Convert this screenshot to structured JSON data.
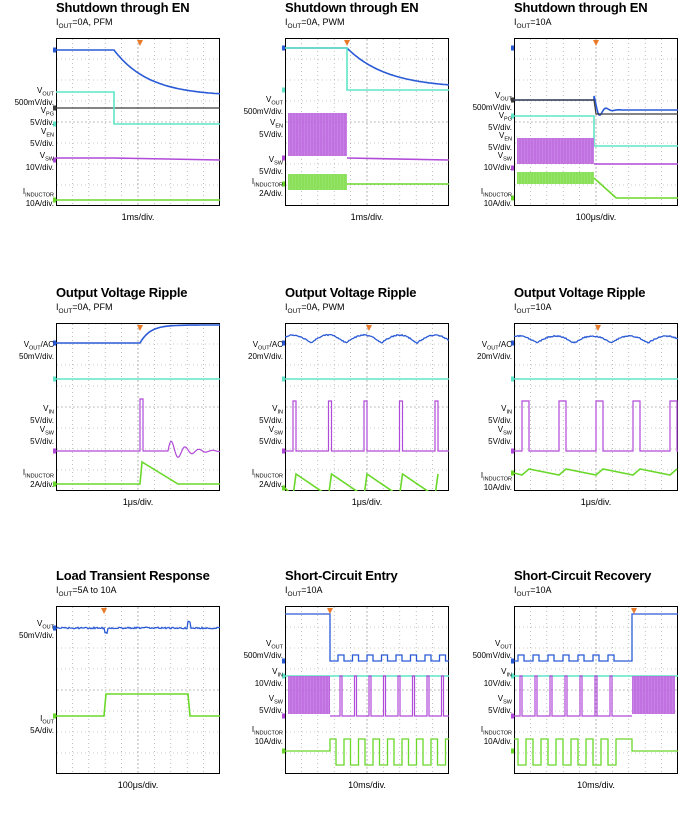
{
  "colors": {
    "vout": "#2a5ad6",
    "vpg": "#3b3b3b",
    "ven": "#5fe6c8",
    "vin": "#5fe6c8",
    "vsw": "#b04ad8",
    "iind": "#6ad82a",
    "grid": "#9a9a9a",
    "trigger": "#e87a2a"
  },
  "chart_data": [
    {
      "type": "line",
      "title": "Shutdown through EN",
      "condition": {
        "pre": "I",
        "sub": "OUT",
        "post": "=0A, PFM"
      },
      "timebase": "1ms/div.",
      "channels": [
        {
          "name": "V",
          "sub": "OUT",
          "post": "",
          "scale": "500mV/div.",
          "color": "vout"
        },
        {
          "name": "V",
          "sub": "PG",
          "post": "",
          "scale": "5V/div.",
          "color": "vpg"
        },
        {
          "name": "V",
          "sub": "EN",
          "post": "",
          "scale": "5V/div.",
          "color": "ven"
        },
        {
          "name": "V",
          "sub": "SW",
          "post": "",
          "scale": "10V/div.",
          "color": "vsw"
        },
        {
          "name": "I",
          "sub": "INDUCTOR",
          "post": "",
          "scale": "10A/div.",
          "color": "iind"
        }
      ]
    },
    {
      "type": "line",
      "title": "Shutdown through EN",
      "condition": {
        "pre": "I",
        "sub": "OUT",
        "post": "=0A, PWM"
      },
      "timebase": "1ms/div.",
      "channels": [
        {
          "name": "V",
          "sub": "OUT",
          "post": "",
          "scale": "500mV/div.",
          "color": "vout"
        },
        {
          "name": "V",
          "sub": "EN",
          "post": "",
          "scale": "5V/div.",
          "color": "ven"
        },
        {
          "name": "V",
          "sub": "SW",
          "post": "",
          "scale": "5V/div.",
          "color": "vsw"
        },
        {
          "name": "I",
          "sub": "INDUCTOR",
          "post": "",
          "scale": "2A/div.",
          "color": "iind"
        }
      ]
    },
    {
      "type": "line",
      "title": "Shutdown through EN",
      "condition": {
        "pre": "I",
        "sub": "OUT",
        "post": "=10A"
      },
      "timebase": "100μs/div.",
      "channels": [
        {
          "name": "V",
          "sub": "OUT",
          "post": "",
          "scale": "500mV/div.",
          "color": "vout"
        },
        {
          "name": "V",
          "sub": "PG",
          "post": "",
          "scale": "5V/div.",
          "color": "vpg"
        },
        {
          "name": "V",
          "sub": "EN",
          "post": "",
          "scale": "5V/div.",
          "color": "ven"
        },
        {
          "name": "V",
          "sub": "SW",
          "post": "",
          "scale": "10V/div.",
          "color": "vsw"
        },
        {
          "name": "I",
          "sub": "INDUCTOR",
          "post": "",
          "scale": "10A/div.",
          "color": "iind"
        }
      ]
    },
    {
      "type": "line",
      "title": "Output Voltage Ripple",
      "condition": {
        "pre": "I",
        "sub": "OUT",
        "post": "=0A, PFM"
      },
      "timebase": "1μs/div.",
      "channels": [
        {
          "name": "V",
          "sub": "OUT",
          "post": "/AC",
          "scale": "50mV/div.",
          "color": "vout"
        },
        {
          "name": "V",
          "sub": "IN",
          "post": "",
          "scale": "5V/div.",
          "color": "vin"
        },
        {
          "name": "V",
          "sub": "SW",
          "post": "",
          "scale": "5V/div.",
          "color": "vsw"
        },
        {
          "name": "I",
          "sub": "INDUCTOR",
          "post": "",
          "scale": "2A/div.",
          "color": "iind"
        }
      ]
    },
    {
      "type": "line",
      "title": "Output Voltage Ripple",
      "condition": {
        "pre": "I",
        "sub": "OUT",
        "post": "=0A, PWM"
      },
      "timebase": "1μs/div.",
      "channels": [
        {
          "name": "V",
          "sub": "OUT",
          "post": "/AC",
          "scale": "20mV/div.",
          "color": "vout"
        },
        {
          "name": "V",
          "sub": "IN",
          "post": "",
          "scale": "5V/div.",
          "color": "vin"
        },
        {
          "name": "V",
          "sub": "SW",
          "post": "",
          "scale": "5V/div.",
          "color": "vsw"
        },
        {
          "name": "I",
          "sub": "INDUCTOR",
          "post": "",
          "scale": "2A/div.",
          "color": "iind"
        }
      ]
    },
    {
      "type": "line",
      "title": "Output Voltage Ripple",
      "condition": {
        "pre": "I",
        "sub": "OUT",
        "post": "=10A"
      },
      "timebase": "1μs/div.",
      "channels": [
        {
          "name": "V",
          "sub": "OUT",
          "post": "/AC",
          "scale": "20mV/div.",
          "color": "vout"
        },
        {
          "name": "V",
          "sub": "IN",
          "post": "",
          "scale": "5V/div.",
          "color": "vin"
        },
        {
          "name": "V",
          "sub": "SW",
          "post": "",
          "scale": "5V/div.",
          "color": "vsw"
        },
        {
          "name": "I",
          "sub": "INDUCTOR",
          "post": "",
          "scale": "10A/div.",
          "color": "iind"
        }
      ]
    },
    {
      "type": "line",
      "title": "Load Transient Response",
      "condition": {
        "pre": "I",
        "sub": "OUT",
        "post": "=5A to 10A"
      },
      "timebase": "100μs/div.",
      "channels": [
        {
          "name": "V",
          "sub": "OUT",
          "post": "",
          "scale": "50mV/div.",
          "color": "vout"
        },
        {
          "name": "I",
          "sub": "OUT",
          "post": "",
          "scale": "5A/div.",
          "color": "iind"
        }
      ]
    },
    {
      "type": "line",
      "title": "Short-Circuit Entry",
      "condition": {
        "pre": "I",
        "sub": "OUT",
        "post": "=10A"
      },
      "timebase": "10ms/div.",
      "channels": [
        {
          "name": "V",
          "sub": "OUT",
          "post": "",
          "scale": "500mV/div.",
          "color": "vout"
        },
        {
          "name": "V",
          "sub": "IN",
          "post": "",
          "scale": "10V/div.",
          "color": "vin"
        },
        {
          "name": "V",
          "sub": "SW",
          "post": "",
          "scale": "5V/div.",
          "color": "vsw"
        },
        {
          "name": "I",
          "sub": "INDUCTOR",
          "post": "",
          "scale": "10A/div.",
          "color": "iind"
        }
      ]
    },
    {
      "type": "line",
      "title": "Short-Circuit Recovery",
      "condition": {
        "pre": "I",
        "sub": "OUT",
        "post": "=10A"
      },
      "timebase": "10ms/div.",
      "channels": [
        {
          "name": "V",
          "sub": "OUT",
          "post": "",
          "scale": "500mV/div.",
          "color": "vout"
        },
        {
          "name": "V",
          "sub": "IN",
          "post": "",
          "scale": "10V/div.",
          "color": "vin"
        },
        {
          "name": "V",
          "sub": "SW",
          "post": "",
          "scale": "5V/div.",
          "color": "vsw"
        },
        {
          "name": "I",
          "sub": "INDUCTOR",
          "post": "",
          "scale": "10A/div.",
          "color": "iind"
        }
      ]
    }
  ]
}
